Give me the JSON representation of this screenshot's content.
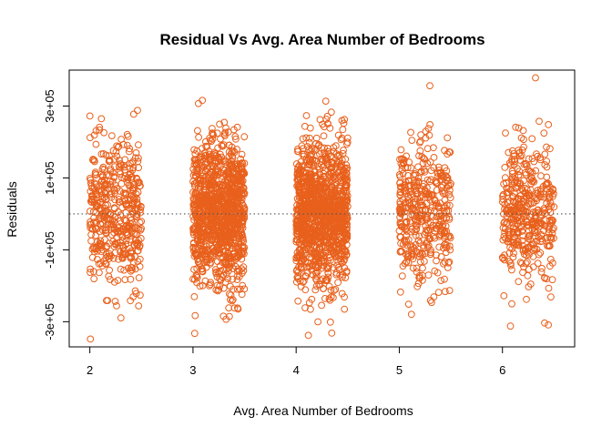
{
  "chart_data": {
    "type": "scatter",
    "title": "Residual Vs Avg. Area Number of Bedrooms",
    "xlabel": "Avg. Area Number of Bedrooms",
    "ylabel": "Residuals",
    "xlim": [
      1.8,
      6.7
    ],
    "ylim": [
      -370000,
      400000
    ],
    "x_ticks": [
      2,
      3,
      4,
      5,
      6
    ],
    "x_tick_labels": [
      "2",
      "3",
      "4",
      "5",
      "6"
    ],
    "y_ticks": [
      -300000,
      -100000,
      100000,
      300000
    ],
    "y_tick_labels": [
      "-3e+05",
      "-1e+05",
      "1e+05",
      "3e+05"
    ],
    "reference_line": {
      "y": 0,
      "style": "dotted"
    },
    "grid": false,
    "marker": "open-circle",
    "color": "#E8601C",
    "clusters": [
      {
        "x_center": 2.25,
        "x_range": [
          2.0,
          2.5
        ],
        "points": 450
      },
      {
        "x_center": 3.25,
        "x_range": [
          3.0,
          3.5
        ],
        "points": 1100
      },
      {
        "x_center": 4.25,
        "x_range": [
          4.0,
          4.5
        ],
        "points": 1200
      },
      {
        "x_center": 5.2,
        "x_range": [
          5.0,
          5.5
        ],
        "points": 420
      },
      {
        "x_center": 6.25,
        "x_range": [
          6.0,
          6.5
        ],
        "points": 420
      }
    ],
    "residual_sd": 100000
  }
}
